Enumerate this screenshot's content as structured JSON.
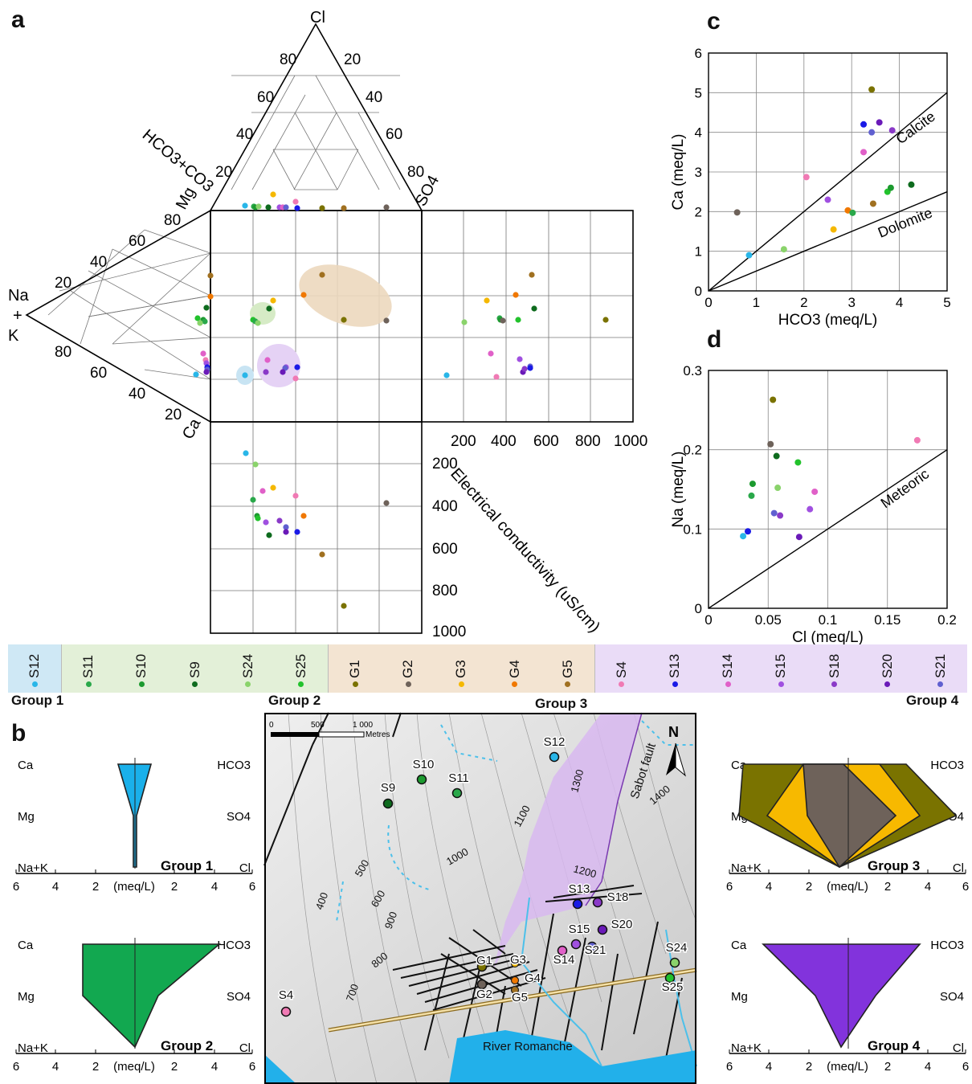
{
  "panel_labels": {
    "a": "a",
    "b": "b",
    "c": "c",
    "d": "d"
  },
  "colors": {
    "S12": "#29b6e8",
    "S11": "#2aa84a",
    "S10": "#1c9a2f",
    "S9": "#0e6b1e",
    "S24": "#8ad36b",
    "S25": "#22c22c",
    "G1": "#7a7200",
    "G2": "#6e625a",
    "G3": "#f5b800",
    "G4": "#f07800",
    "G5": "#a07020",
    "S4": "#f07ab4",
    "S13": "#1a1ae6",
    "S14": "#e060c8",
    "S15": "#a050e0",
    "S18": "#8a3ac8",
    "S20": "#6a1ab8",
    "S21": "#6060d0",
    "group1_bg": "#cfe8f5",
    "group2_bg": "#e3f0d8",
    "group3_bg": "#f3e4d2",
    "group4_bg": "#eadcf7",
    "group1_fill": "#1ab0ea",
    "group2_fill": "#12a850",
    "group3_outer": "#7a7300",
    "group3_mid": "#f7b900",
    "group3_inner": "#6e625a",
    "group4_fill": "#8233dc"
  },
  "piper": {
    "anion_labels": {
      "cl": "Cl",
      "so4": "SO4",
      "hco3": "HCO3+CO3"
    },
    "cation_labels": {
      "mg": "Mg",
      "ca": "Ca",
      "nak": "Na\n+\nK"
    },
    "tick_labels": [
      "20",
      "40",
      "60",
      "80"
    ],
    "ec_axis_label": "Electrical conductivity (uS/cm)",
    "ec_ticks": [
      "200",
      "400",
      "600",
      "800",
      "1000"
    ]
  },
  "legend": {
    "groups": [
      {
        "name": "Group 1",
        "items": [
          "S12"
        ]
      },
      {
        "name": "Group 2",
        "items": [
          "S11",
          "S10",
          "S9",
          "S24",
          "S25"
        ]
      },
      {
        "name": "Group 3",
        "items": [
          "G1",
          "G2",
          "G3",
          "G4",
          "G5"
        ]
      },
      {
        "name": "Group 4",
        "items": [
          "S4",
          "S13",
          "S14",
          "S15",
          "S18",
          "S20",
          "S21"
        ]
      }
    ]
  },
  "stiff": {
    "left_labels": [
      "Ca",
      "Mg",
      "Na+K"
    ],
    "right_labels": [
      "HCO3",
      "SO4",
      "Cl"
    ],
    "axis_ticks": [
      "6",
      "4",
      "2",
      "2",
      "4",
      "6"
    ],
    "unit": "(meq/L)",
    "group_titles": [
      "Group  1",
      "Group  2",
      "Group  3",
      "Group 4"
    ]
  },
  "map": {
    "scale_labels": [
      "0",
      "500",
      "1 000"
    ],
    "scale_unit": "Metres",
    "north": "N",
    "fault_label": "Sabot fault",
    "river_label": "River Romanche",
    "contours": [
      "400",
      "500",
      "600",
      "700",
      "800",
      "900",
      "1000",
      "1100",
      "1200",
      "1300",
      "1400"
    ],
    "sites": [
      "S12",
      "S10",
      "S11",
      "S9",
      "S13",
      "S18",
      "S20",
      "S15",
      "S14",
      "S21",
      "G1",
      "G3",
      "G4",
      "G2",
      "G5",
      "S24",
      "S25",
      "S4"
    ]
  },
  "chart_data": [
    {
      "type": "scatter",
      "panel": "c",
      "xlabel": "HCO3 (meq/L)",
      "ylabel": "Ca (meq/L)",
      "xlim": [
        0,
        5
      ],
      "ylim": [
        0,
        6
      ],
      "xticks": [
        0,
        1,
        2,
        3,
        4,
        5
      ],
      "yticks": [
        0,
        1,
        2,
        3,
        4,
        5,
        6
      ],
      "grid": true,
      "lines": [
        {
          "label": "Calcite",
          "slope": 1
        },
        {
          "label": "Dolomite",
          "slope": 0.5
        }
      ],
      "points": [
        {
          "id": "G1",
          "x": 3.42,
          "y": 5.08
        },
        {
          "id": "S13",
          "x": 3.25,
          "y": 4.2
        },
        {
          "id": "S21",
          "x": 3.42,
          "y": 4.0
        },
        {
          "id": "S20",
          "x": 3.58,
          "y": 4.25
        },
        {
          "id": "S18",
          "x": 3.85,
          "y": 4.05
        },
        {
          "id": "S14",
          "x": 3.25,
          "y": 3.5
        },
        {
          "id": "S4",
          "x": 2.05,
          "y": 2.87
        },
        {
          "id": "S15",
          "x": 2.5,
          "y": 2.3
        },
        {
          "id": "G5",
          "x": 3.45,
          "y": 2.2
        },
        {
          "id": "S25",
          "x": 3.75,
          "y": 2.5
        },
        {
          "id": "S10",
          "x": 3.82,
          "y": 2.6
        },
        {
          "id": "S9",
          "x": 4.25,
          "y": 2.68
        },
        {
          "id": "G4",
          "x": 2.92,
          "y": 2.03
        },
        {
          "id": "S11",
          "x": 3.02,
          "y": 1.97
        },
        {
          "id": "G3",
          "x": 2.62,
          "y": 1.55
        },
        {
          "id": "G2",
          "x": 0.6,
          "y": 1.98
        },
        {
          "id": "S24",
          "x": 1.58,
          "y": 1.05
        },
        {
          "id": "S12",
          "x": 0.85,
          "y": 0.9
        }
      ]
    },
    {
      "type": "scatter",
      "panel": "d",
      "xlabel": "Cl (meq/L)",
      "ylabel": "Na (meq/L)",
      "xlim": [
        0,
        0.2
      ],
      "ylim": [
        0,
        0.3
      ],
      "xticks": [
        0,
        0.05,
        0.1,
        0.15,
        0.2
      ],
      "xtick_labels": [
        "0",
        "0.05",
        "0.1",
        "0.15",
        "0.2"
      ],
      "yticks": [
        0,
        0.1,
        0.2,
        0.3
      ],
      "ytick_labels": [
        "0",
        "0.1",
        "0.2",
        "0.3"
      ],
      "grid": true,
      "lines": [
        {
          "label": "Meteoric",
          "slope": 1
        }
      ],
      "points": [
        {
          "id": "G1",
          "x": 0.054,
          "y": 0.263
        },
        {
          "id": "G2",
          "x": 0.052,
          "y": 0.207
        },
        {
          "id": "S4",
          "x": 0.175,
          "y": 0.212
        },
        {
          "id": "S9",
          "x": 0.057,
          "y": 0.192
        },
        {
          "id": "S25",
          "x": 0.075,
          "y": 0.184
        },
        {
          "id": "S10",
          "x": 0.037,
          "y": 0.157
        },
        {
          "id": "S24",
          "x": 0.058,
          "y": 0.152
        },
        {
          "id": "S14",
          "x": 0.089,
          "y": 0.147
        },
        {
          "id": "S11",
          "x": 0.036,
          "y": 0.142
        },
        {
          "id": "S15",
          "x": 0.085,
          "y": 0.125
        },
        {
          "id": "S21",
          "x": 0.055,
          "y": 0.12
        },
        {
          "id": "S18",
          "x": 0.06,
          "y": 0.117
        },
        {
          "id": "S13",
          "x": 0.033,
          "y": 0.097
        },
        {
          "id": "S12",
          "x": 0.029,
          "y": 0.091
        },
        {
          "id": "S20",
          "x": 0.076,
          "y": 0.09
        }
      ]
    }
  ]
}
